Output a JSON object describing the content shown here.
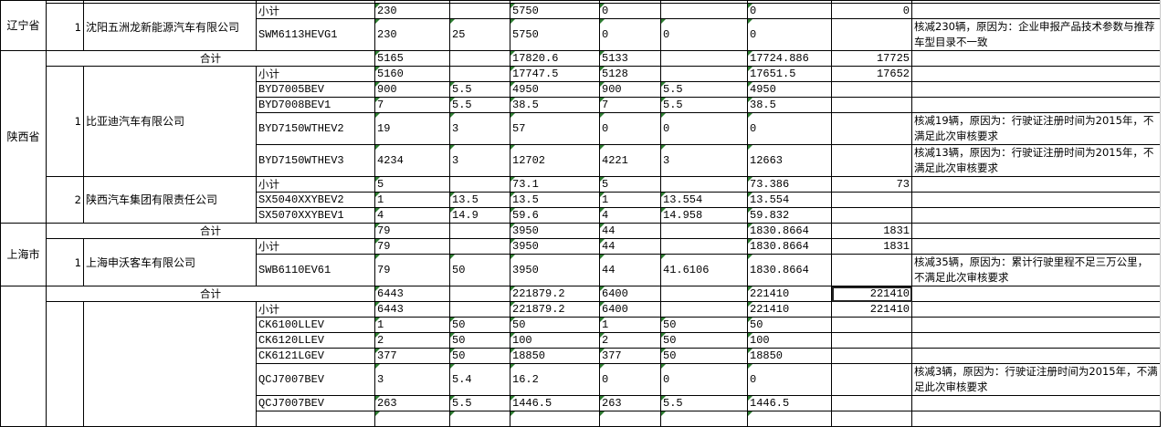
{
  "sheet": {
    "subtotal_label": "小计",
    "total_label": "合计",
    "colors": {
      "text_number_marker": "#2e7d32",
      "grid": "#000000"
    },
    "selected_cell": "provinces.3.total.c7",
    "provinces": [
      {
        "name": "辽宁省",
        "partial_top": true,
        "total": null,
        "companies": [
          {
            "index": "1",
            "name": "沈阳五洲龙新能源汽车有限公司",
            "subtotal": {
              "c1": "230",
              "c2": "",
              "c3": "5750",
              "c4": "0",
              "c5": "",
              "c6": "0",
              "c7": "0",
              "c8": ""
            },
            "models": [
              {
                "model": "SWM6113HEVG1",
                "c1": "230",
                "c2": "25",
                "c3": "5750",
                "c4": "0",
                "c5": "0",
                "c6": "0",
                "c7": "",
                "c8": "核减230辆，原因为：企业申报产品技术参数与推荐车型目录不一致"
              }
            ]
          }
        ]
      },
      {
        "name": "陕西省",
        "total": {
          "c1": "5165",
          "c2": "",
          "c3": "17820.6",
          "c4": "5133",
          "c5": "",
          "c6": "17724.886",
          "c7": "17725",
          "c8": ""
        },
        "companies": [
          {
            "index": "1",
            "name": "比亚迪汽车有限公司",
            "subtotal": {
              "c1": "5160",
              "c2": "",
              "c3": "17747.5",
              "c4": "5128",
              "c5": "",
              "c6": "17651.5",
              "c7": "17652",
              "c8": ""
            },
            "models": [
              {
                "model": "BYD7005BEV",
                "c1": "900",
                "c2": "5.5",
                "c3": "4950",
                "c4": "900",
                "c5": "5.5",
                "c6": "4950",
                "c7": "",
                "c8": ""
              },
              {
                "model": "BYD7008BEV1",
                "c1": "7",
                "c2": "5.5",
                "c3": "38.5",
                "c4": "7",
                "c5": "5.5",
                "c6": "38.5",
                "c7": "",
                "c8": ""
              },
              {
                "model": "BYD7150WTHEV2",
                "c1": "19",
                "c2": "3",
                "c3": "57",
                "c4": "0",
                "c5": "0",
                "c6": "0",
                "c7": "",
                "c8": "核减19辆，原因为：行驶证注册时间为2015年，不满足此次审核要求"
              },
              {
                "model": "BYD7150WTHEV3",
                "c1": "4234",
                "c2": "3",
                "c3": "12702",
                "c4": "4221",
                "c5": "3",
                "c6": "12663",
                "c7": "",
                "c8": "核减13辆，原因为：行驶证注册时间为2015年，不满足此次审核要求"
              }
            ]
          },
          {
            "index": "2",
            "name": "陕西汽车集团有限责任公司",
            "subtotal": {
              "c1": "5",
              "c2": "",
              "c3": "73.1",
              "c4": "5",
              "c5": "",
              "c6": "73.386",
              "c7": "73",
              "c8": ""
            },
            "models": [
              {
                "model": "SX5040XXYBEV2",
                "c1": "1",
                "c2": "13.5",
                "c3": "13.5",
                "c4": "1",
                "c5": "13.554",
                "c6": "13.554",
                "c7": "",
                "c8": ""
              },
              {
                "model": "SX5070XXYBEV1",
                "c1": "4",
                "c2": "14.9",
                "c3": "59.6",
                "c4": "4",
                "c5": "14.958",
                "c6": "59.832",
                "c7": "",
                "c8": ""
              }
            ]
          }
        ]
      },
      {
        "name": "上海市",
        "total": {
          "c1": "79",
          "c2": "",
          "c3": "3950",
          "c4": "44",
          "c5": "",
          "c6": "1830.8664",
          "c7": "1831",
          "c8": ""
        },
        "companies": [
          {
            "index": "1",
            "name": "上海申沃客车有限公司",
            "subtotal": {
              "c1": "79",
              "c2": "",
              "c3": "3950",
              "c4": "44",
              "c5": "",
              "c6": "1830.8664",
              "c7": "1831",
              "c8": ""
            },
            "models": [
              {
                "model": "SWB6110EV61",
                "c1": "79",
                "c2": "50",
                "c3": "3950",
                "c4": "44",
                "c5": "41.6106",
                "c6": "1830.8664",
                "c7": "",
                "c8": "核减35辆，原因为：累计行驶里程不足三万公里，不满足此次审核要求"
              }
            ]
          }
        ]
      },
      {
        "name": "",
        "partial_bottom": true,
        "total": {
          "c1": "6443",
          "c2": "",
          "c3": "221879.2",
          "c4": "6400",
          "c5": "",
          "c6": "221410",
          "c7": "221410",
          "c8": ""
        },
        "companies": [
          {
            "index": "",
            "name": "",
            "subtotal": {
              "c1": "6443",
              "c2": "",
              "c3": "221879.2",
              "c4": "6400",
              "c5": "",
              "c6": "221410",
              "c7": "221410",
              "c8": ""
            },
            "models": [
              {
                "model": "CK6100LLEV",
                "c1": "1",
                "c2": "50",
                "c3": "50",
                "c4": "1",
                "c5": "50",
                "c6": "50",
                "c7": "",
                "c8": ""
              },
              {
                "model": "CK6120LLEV",
                "c1": "2",
                "c2": "50",
                "c3": "100",
                "c4": "2",
                "c5": "50",
                "c6": "100",
                "c7": "",
                "c8": ""
              },
              {
                "model": "CK6121LGEV",
                "c1": "377",
                "c2": "50",
                "c3": "18850",
                "c4": "377",
                "c5": "50",
                "c6": "18850",
                "c7": "",
                "c8": ""
              },
              {
                "model": "QCJ7007BEV",
                "c1": "3",
                "c2": "5.4",
                "c3": "16.2",
                "c4": "0",
                "c5": "0",
                "c6": "0",
                "c7": "",
                "c8": "核减3辆，原因为：行驶证注册时间为2015年，不满足此次审核要求"
              },
              {
                "model": "QCJ7007BEV",
                "c1": "263",
                "c2": "5.5",
                "c3": "1446.5",
                "c4": "263",
                "c5": "5.5",
                "c6": "1446.5",
                "c7": "",
                "c8": ""
              }
            ]
          }
        ]
      }
    ]
  }
}
